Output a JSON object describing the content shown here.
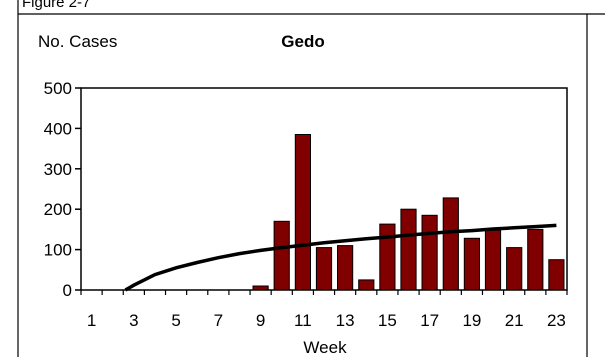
{
  "figure_label": "Figure 2-7",
  "chart_data": {
    "type": "bar",
    "title": "Gedo",
    "ylabel": "No. Cases",
    "xlabel": "Week",
    "ylim": [
      0,
      500
    ],
    "yticks": [
      0,
      100,
      200,
      300,
      400,
      500
    ],
    "categories": [
      1,
      2,
      3,
      4,
      5,
      6,
      7,
      8,
      9,
      10,
      11,
      12,
      13,
      14,
      15,
      16,
      17,
      18,
      19,
      20,
      21,
      22,
      23
    ],
    "x_tick_labels": [
      "1",
      "3",
      "5",
      "7",
      "9",
      "11",
      "13",
      "15",
      "17",
      "19",
      "21",
      "23"
    ],
    "values": [
      0,
      0,
      0,
      0,
      0,
      0,
      0,
      0,
      10,
      170,
      385,
      105,
      110,
      25,
      163,
      200,
      185,
      228,
      128,
      148,
      105,
      150,
      75
    ],
    "bar_color": "#800000",
    "trendline": {
      "type": "logarithmic",
      "points": [
        [
          2.6,
          0
        ],
        [
          3,
          12
        ],
        [
          4,
          38
        ],
        [
          5,
          55
        ],
        [
          6,
          68
        ],
        [
          7,
          80
        ],
        [
          8,
          90
        ],
        [
          9,
          98
        ],
        [
          10,
          105
        ],
        [
          11,
          111
        ],
        [
          12,
          117
        ],
        [
          13,
          122
        ],
        [
          14,
          127
        ],
        [
          15,
          131
        ],
        [
          16,
          136
        ],
        [
          17,
          140
        ],
        [
          18,
          144
        ],
        [
          19,
          147
        ],
        [
          20,
          151
        ],
        [
          21,
          154
        ],
        [
          22,
          157
        ],
        [
          23,
          160
        ]
      ],
      "color": "#000000"
    },
    "grid": false,
    "legend": "none"
  }
}
